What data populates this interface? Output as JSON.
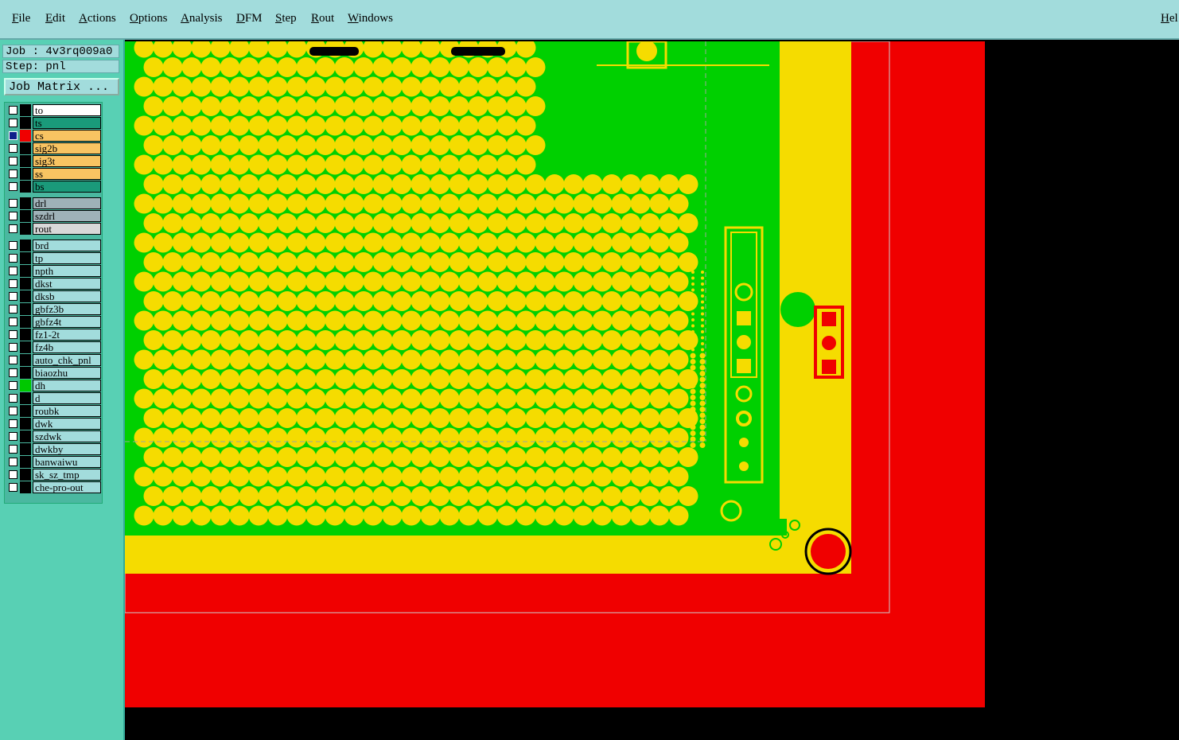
{
  "menu": [
    "File",
    "Edit",
    "Actions",
    "Options",
    "Analysis",
    "DFM",
    "Step",
    "Rout",
    "Windows"
  ],
  "help": "Hel",
  "job": "Job : 4v3rq009a0",
  "step": "Step: pnl",
  "job_matrix_button": "Job Matrix ...",
  "layer_groups": [
    [
      {
        "name": "to",
        "color": "#ffffff"
      },
      {
        "name": "ts",
        "color": "#1a9a7a"
      },
      {
        "name": "cs",
        "color": "#f8c462",
        "swatch": "#f00000",
        "selected": true
      },
      {
        "name": "sig2b",
        "color": "#f8c462"
      },
      {
        "name": "sig3t",
        "color": "#f8c462"
      },
      {
        "name": "ss",
        "color": "#f8c462"
      },
      {
        "name": "bs",
        "color": "#1a9a7a"
      }
    ],
    [
      {
        "name": "drl",
        "color": "#9fb2b8"
      },
      {
        "name": "szdrl",
        "color": "#9fb2b8"
      },
      {
        "name": "rout",
        "color": "#d8d8d8"
      }
    ],
    [
      {
        "name": "brd",
        "color": "#a2dcdc"
      },
      {
        "name": "tp",
        "color": "#a2dcdc"
      },
      {
        "name": "npth",
        "color": "#a2dcdc"
      },
      {
        "name": "dkst",
        "color": "#a2dcdc"
      },
      {
        "name": "dksb",
        "color": "#a2dcdc"
      },
      {
        "name": "gbfz3b",
        "color": "#a2dcdc"
      },
      {
        "name": "gbfz4t",
        "color": "#a2dcdc"
      },
      {
        "name": "fz1-2t",
        "color": "#a2dcdc"
      },
      {
        "name": "fz4b",
        "color": "#a2dcdc"
      },
      {
        "name": "auto_chk_pnl",
        "color": "#a2dcdc"
      },
      {
        "name": "biaozhu",
        "color": "#a2dcdc"
      },
      {
        "name": "dh",
        "color": "#a2dcdc",
        "swatch": "#00c800"
      },
      {
        "name": "d",
        "color": "#a2dcdc"
      },
      {
        "name": "roubk",
        "color": "#a2dcdc"
      },
      {
        "name": "dwk",
        "color": "#a2dcdc"
      },
      {
        "name": "szdwk",
        "color": "#a2dcdc"
      },
      {
        "name": "dwkby",
        "color": "#a2dcdc"
      },
      {
        "name": "banwaiwu",
        "color": "#a2dcdc"
      },
      {
        "name": "sk_sz_tmp",
        "color": "#a2dcdc"
      },
      {
        "name": "che-pro-out",
        "color": "#a2dcdc"
      }
    ]
  ]
}
